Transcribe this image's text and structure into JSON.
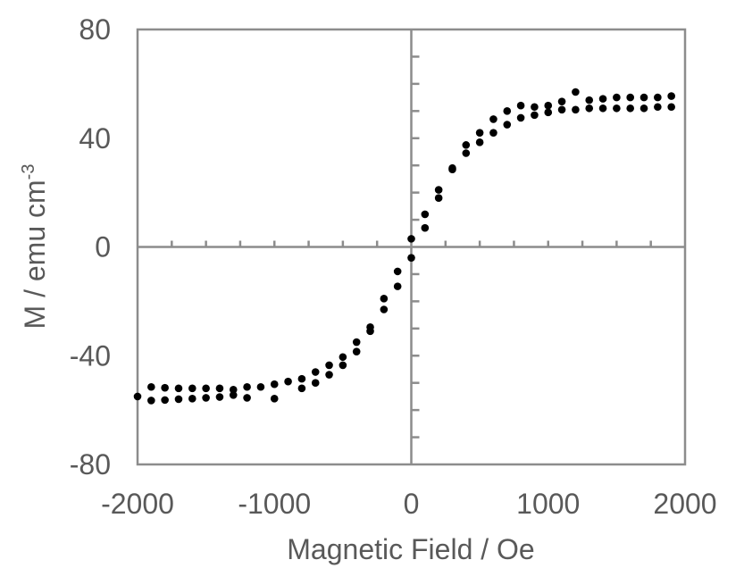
{
  "chart_data": {
    "type": "scatter",
    "title": "",
    "xlabel": "Magnetic Field / Oe",
    "ylabel_main": "M / emu cm",
    "ylabel_sup": "-3",
    "xlim": [
      -2000,
      2000
    ],
    "ylim": [
      -80,
      80
    ],
    "x_ticks": [
      -2000,
      -1000,
      0,
      1000,
      2000
    ],
    "x_tick_labels": [
      "-2000",
      "-1000",
      "0",
      "1000",
      "2000"
    ],
    "y_ticks": [
      -80,
      -40,
      0,
      40,
      80
    ],
    "y_tick_labels": [
      "-80",
      "-40",
      "0",
      "40",
      "80"
    ],
    "grid": false,
    "legend": "none",
    "marker_color": "#000000",
    "series": [
      {
        "points": [
          [
            -2000,
            -55
          ],
          [
            -1900,
            -56.5
          ],
          [
            -1800,
            -56.3
          ],
          [
            -1700,
            -56
          ],
          [
            -1600,
            -55.8
          ],
          [
            -1500,
            -55.5
          ],
          [
            -1400,
            -55.2
          ],
          [
            -1300,
            -54.5
          ],
          [
            -1200,
            -55.5
          ],
          [
            -1000,
            -55.8
          ],
          [
            -800,
            -52
          ],
          [
            -700,
            -50
          ],
          [
            -600,
            -47
          ],
          [
            -500,
            -43.5
          ],
          [
            -400,
            -38.5
          ],
          [
            -300,
            -31
          ],
          [
            -200,
            -23
          ],
          [
            -100,
            -14.5
          ],
          [
            0,
            -4
          ],
          [
            100,
            7
          ],
          [
            200,
            18
          ],
          [
            300,
            28.5
          ],
          [
            400,
            34.5
          ],
          [
            500,
            38.5
          ],
          [
            600,
            42
          ],
          [
            700,
            45
          ],
          [
            800,
            47.5
          ],
          [
            900,
            48.5
          ],
          [
            1000,
            49.5
          ],
          [
            1100,
            50.5
          ],
          [
            1200,
            50.5
          ],
          [
            1300,
            51
          ],
          [
            1400,
            51
          ],
          [
            1500,
            51
          ],
          [
            1600,
            51
          ],
          [
            1700,
            51
          ],
          [
            1800,
            51.5
          ],
          [
            1900,
            51.5
          ]
        ]
      },
      {
        "points": [
          [
            -1900,
            -51.5
          ],
          [
            -1800,
            -51.8
          ],
          [
            -1700,
            -52
          ],
          [
            -1600,
            -52
          ],
          [
            -1500,
            -52
          ],
          [
            -1400,
            -52
          ],
          [
            -1300,
            -52.5
          ],
          [
            -1200,
            -51.5
          ],
          [
            -1100,
            -51.5
          ],
          [
            -1000,
            -50.5
          ],
          [
            -900,
            -49.5
          ],
          [
            -800,
            -48.5
          ],
          [
            -700,
            -46
          ],
          [
            -600,
            -43.5
          ],
          [
            -500,
            -40.5
          ],
          [
            -400,
            -35
          ],
          [
            -300,
            -29.5
          ],
          [
            -200,
            -19
          ],
          [
            -100,
            -9
          ],
          [
            0,
            3
          ],
          [
            100,
            12
          ],
          [
            200,
            21
          ],
          [
            300,
            29
          ],
          [
            400,
            37.5
          ],
          [
            500,
            42
          ],
          [
            600,
            47
          ],
          [
            700,
            50
          ],
          [
            800,
            52
          ],
          [
            900,
            51.5
          ],
          [
            1000,
            52
          ],
          [
            1100,
            53.5
          ],
          [
            1200,
            57
          ],
          [
            1300,
            54
          ],
          [
            1400,
            54.5
          ],
          [
            1500,
            55
          ],
          [
            1600,
            55
          ],
          [
            1700,
            55
          ],
          [
            1800,
            55
          ],
          [
            1900,
            55.5
          ]
        ]
      }
    ]
  }
}
